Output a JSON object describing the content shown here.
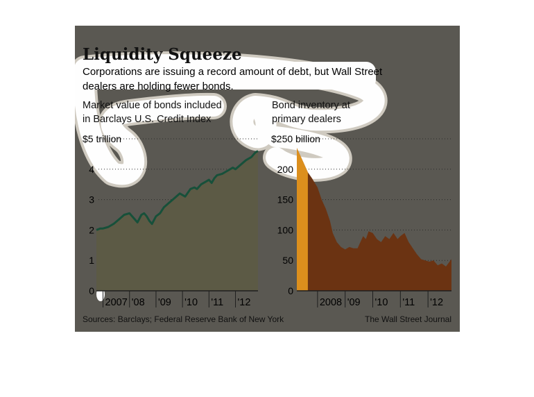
{
  "colors": {
    "panel": "#5a5852",
    "highlight": "#fefefe",
    "halo": "#cfcac0",
    "area_left": "#5c5a45",
    "line_left": "#17503a",
    "area_right": "#6b3312",
    "area_right_hi": "#f0a020",
    "axis": "#1e1e1e"
  },
  "header": {
    "title": "Liquidity Squeeze",
    "subtitle_line1": "Corporations are issuing a record amount of debt, but Wall Street",
    "subtitle_line2": "dealers are holding fewer bonds."
  },
  "footer": {
    "source": "Sources: Barclays; Federal Reserve Bank of New York",
    "credit": "The Wall Street Journal"
  },
  "chart_data": [
    {
      "type": "area",
      "title_line1": "Market value of bonds included",
      "title_line2": "in Barclays U.S. Credit Index",
      "y_unit_label": "$5 trillion",
      "yticks": [
        "0",
        "1",
        "2",
        "3",
        "4"
      ],
      "xticks": [
        "2007",
        "'08",
        "'09",
        "'10",
        "'11",
        "'12"
      ],
      "x_tick_dates": [
        2007.0,
        2008.0,
        2009.0,
        2010.0,
        2011.0,
        2012.0
      ],
      "xlim": [
        2006.75,
        2012.85
      ],
      "ylim": [
        0,
        5
      ],
      "grid": true,
      "x": [
        2006.75,
        2006.9,
        2007.0,
        2007.2,
        2007.4,
        2007.6,
        2007.8,
        2008.0,
        2008.15,
        2008.3,
        2008.45,
        2008.55,
        2008.65,
        2008.75,
        2008.85,
        2009.0,
        2009.15,
        2009.3,
        2009.5,
        2009.7,
        2009.9,
        2010.1,
        2010.3,
        2010.45,
        2010.55,
        2010.7,
        2010.9,
        2011.0,
        2011.1,
        2011.2,
        2011.3,
        2011.5,
        2011.7,
        2011.9,
        2012.0,
        2012.2,
        2012.4,
        2012.6,
        2012.75,
        2012.85
      ],
      "values": [
        2.0,
        2.05,
        2.05,
        2.1,
        2.2,
        2.35,
        2.5,
        2.55,
        2.4,
        2.25,
        2.5,
        2.55,
        2.45,
        2.3,
        2.2,
        2.45,
        2.55,
        2.75,
        2.9,
        3.05,
        3.2,
        3.1,
        3.35,
        3.4,
        3.35,
        3.5,
        3.6,
        3.65,
        3.55,
        3.7,
        3.8,
        3.85,
        3.95,
        4.05,
        4.0,
        4.15,
        4.3,
        4.4,
        4.55,
        4.6
      ]
    },
    {
      "type": "area",
      "title_line1": "Bond inventory at",
      "title_line2": "primary dealers",
      "y_unit_label": "$250 billion",
      "yticks": [
        "0",
        "50",
        "100",
        "150",
        "200"
      ],
      "xticks": [
        "2008",
        "'09",
        "'10",
        "'11",
        "'12"
      ],
      "x_tick_dates": [
        2008.0,
        2009.0,
        2010.0,
        2011.0,
        2012.0
      ],
      "xlim": [
        2007.25,
        2012.85
      ],
      "ylim": [
        0,
        250
      ],
      "grid": true,
      "x": [
        2007.25,
        2007.35,
        2007.5,
        2007.65,
        2007.8,
        2008.0,
        2008.15,
        2008.3,
        2008.45,
        2008.55,
        2008.7,
        2008.85,
        2009.0,
        2009.15,
        2009.3,
        2009.45,
        2009.55,
        2009.65,
        2009.75,
        2009.85,
        2010.0,
        2010.15,
        2010.3,
        2010.45,
        2010.6,
        2010.75,
        2010.9,
        2011.0,
        2011.15,
        2011.3,
        2011.45,
        2011.6,
        2011.75,
        2011.9,
        2012.05,
        2012.2,
        2012.35,
        2012.5,
        2012.65,
        2012.85
      ],
      "values": [
        235,
        225,
        210,
        195,
        185,
        170,
        150,
        135,
        115,
        95,
        80,
        72,
        68,
        72,
        70,
        70,
        80,
        90,
        85,
        98,
        95,
        85,
        80,
        90,
        85,
        95,
        85,
        90,
        95,
        80,
        70,
        60,
        52,
        50,
        48,
        50,
        42,
        45,
        40,
        52
      ]
    }
  ]
}
